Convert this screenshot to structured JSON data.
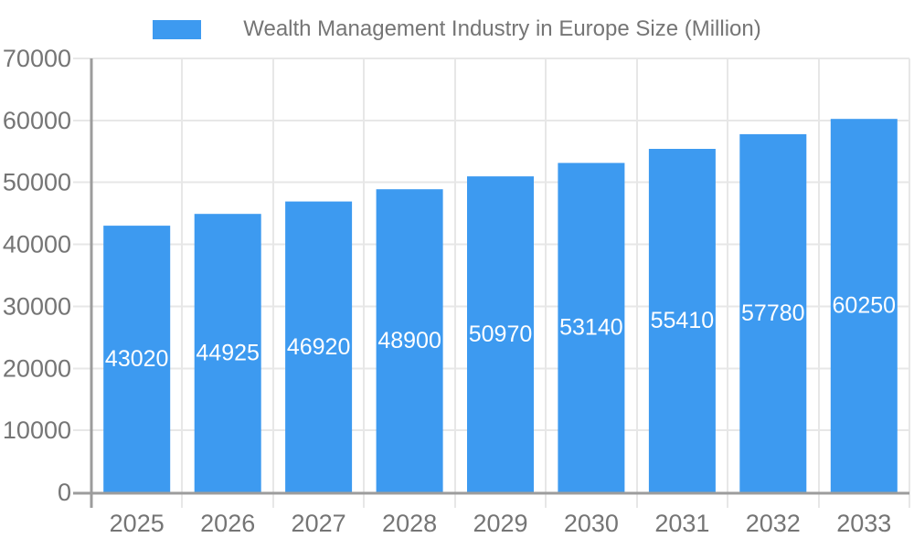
{
  "chart_data": {
    "type": "bar",
    "title": "Wealth Management Industry in Europe Size (Million)",
    "categories": [
      "2025",
      "2026",
      "2027",
      "2028",
      "2029",
      "2030",
      "2031",
      "2032",
      "2033"
    ],
    "values": [
      43020,
      44925,
      46920,
      48900,
      50970,
      53140,
      55410,
      57780,
      60250
    ],
    "xlabel": "",
    "ylabel": "",
    "ylim": [
      0,
      70000
    ],
    "yticks": [
      0,
      10000,
      20000,
      30000,
      40000,
      50000,
      60000,
      70000
    ],
    "grid": true,
    "legend_position": "top",
    "bar_color": "#3D9AF0",
    "bar_label_color": "#ffffff",
    "grid_color": "#e7e7e7",
    "axis_color": "#9c9c9c",
    "text_color": "#757575"
  }
}
